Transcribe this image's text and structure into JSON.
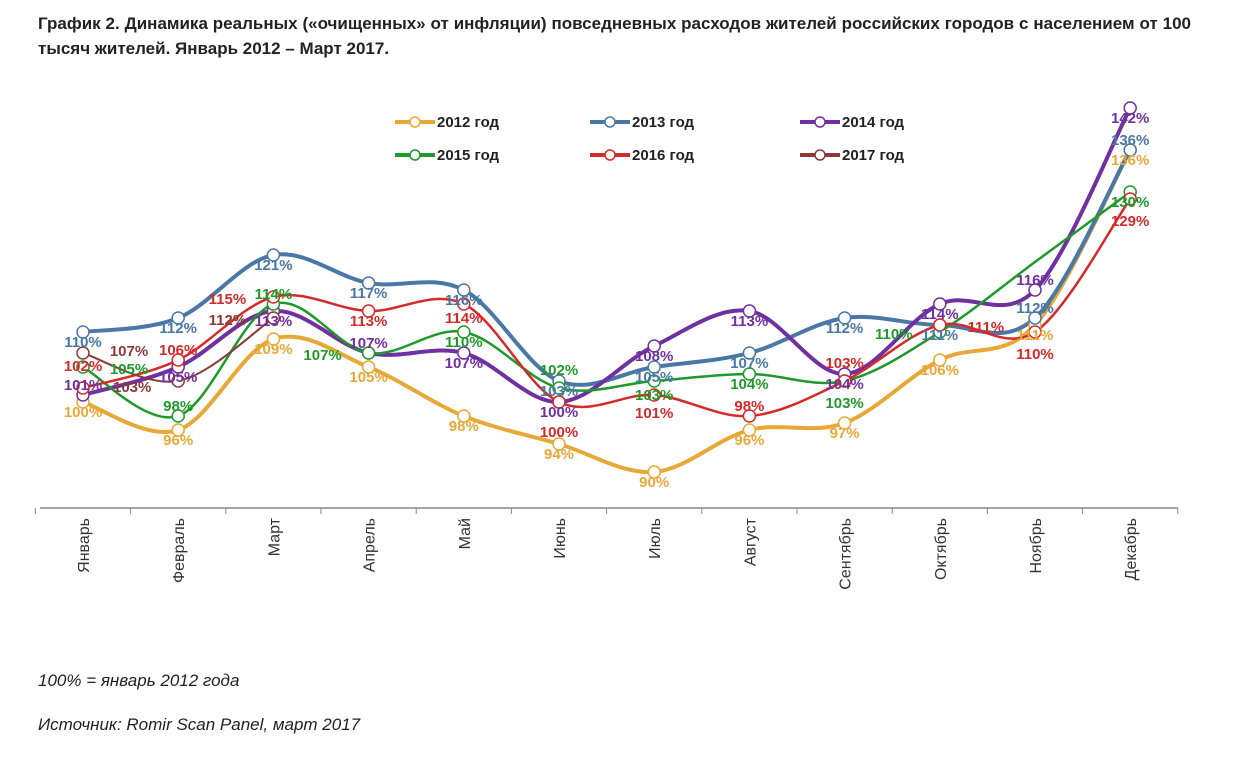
{
  "title": "График 2. Динамика реальных («очищенных» от инфляции) повседневных расходов жителей российских городов с населением от 100 тысяч жителей. Январь 2012 – Март 2017.",
  "notes": {
    "base": "100% = январь 2012 года",
    "source": "Источник: Romir Scan Panel, март 2017"
  },
  "chart_data": {
    "type": "line",
    "categories": [
      "Январь",
      "Февраль",
      "Март",
      "Апрель",
      "Май",
      "Июнь",
      "Июль",
      "Август",
      "Сентябрь",
      "Октябрь",
      "Ноябрь",
      "Декабрь"
    ],
    "unit": "%",
    "grid": false,
    "legend": "top",
    "series": [
      {
        "name": "2012 год",
        "color": "#e8a838",
        "values": [
          100,
          96,
          109,
          105,
          98,
          94,
          90,
          96,
          97,
          106,
          111,
          136
        ]
      },
      {
        "name": "2013 год",
        "color": "#4a78a6",
        "values": [
          110,
          112,
          121,
          117,
          116,
          103,
          105,
          107,
          112,
          111,
          112,
          136
        ]
      },
      {
        "name": "2014 год",
        "color": "#7030a0",
        "values": [
          101,
          105,
          113,
          107,
          107,
          100,
          108,
          113,
          104,
          114,
          116,
          142
        ]
      },
      {
        "name": "2015 год",
        "color": "#1f9a2a",
        "values": [
          105,
          98,
          114,
          107,
          110,
          102,
          103,
          104,
          103,
          110,
          null,
          130
        ]
      },
      {
        "name": "2016 год",
        "color": "#d42a2a",
        "values": [
          102,
          106,
          115,
          113,
          114,
          100,
          101,
          98,
          103,
          111,
          110,
          129
        ]
      },
      {
        "name": "2017 год",
        "color": "#8b3a3a",
        "values": [
          107,
          103,
          112,
          null,
          null,
          null,
          null,
          null,
          null,
          null,
          null,
          null
        ]
      }
    ]
  }
}
